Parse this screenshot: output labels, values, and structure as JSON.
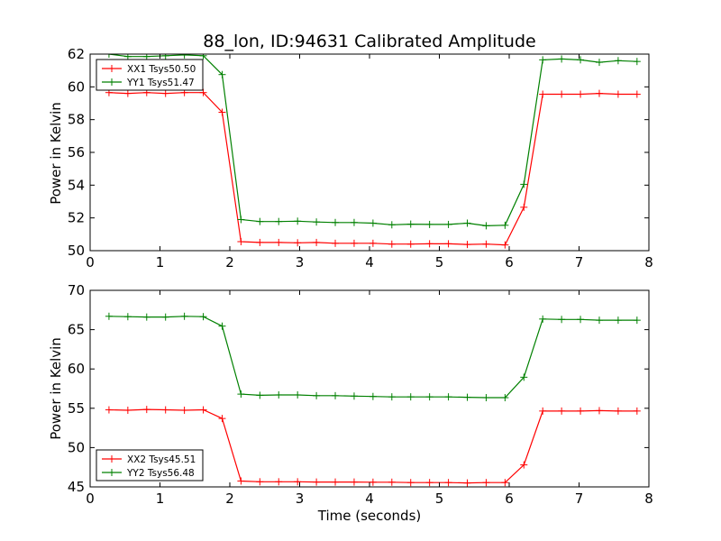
{
  "chart_data": [
    {
      "type": "line",
      "title": "88_lon, ID:94631 Calibrated Amplitude",
      "xlabel": "",
      "ylabel": "Power in Kelvin",
      "xlim": [
        0,
        8
      ],
      "ylim": [
        50,
        62
      ],
      "xticks": [
        0,
        1,
        2,
        3,
        4,
        5,
        6,
        7,
        8
      ],
      "yticks": [
        50,
        52,
        54,
        56,
        58,
        60,
        62
      ],
      "grid": false,
      "legend_position": "upper-left",
      "x": [
        0.27,
        0.54,
        0.81,
        1.08,
        1.35,
        1.62,
        1.89,
        2.16,
        2.43,
        2.7,
        2.97,
        3.24,
        3.51,
        3.78,
        4.05,
        4.32,
        4.59,
        4.86,
        5.13,
        5.4,
        5.67,
        5.94,
        6.21,
        6.48,
        6.75,
        7.02,
        7.29,
        7.56,
        7.83
      ],
      "series": [
        {
          "name": "XX1 Tsys50.50",
          "color": "#ff0000",
          "values": [
            59.65,
            59.6,
            59.65,
            59.6,
            59.65,
            59.65,
            58.45,
            50.55,
            50.5,
            50.5,
            50.48,
            50.5,
            50.45,
            50.45,
            50.45,
            50.4,
            50.4,
            50.42,
            50.42,
            50.38,
            50.4,
            50.35,
            52.65,
            59.55,
            59.55,
            59.55,
            59.6,
            59.55,
            59.55
          ]
        },
        {
          "name": "YY1 Tsys51.47",
          "color": "#008000",
          "values": [
            62.0,
            61.85,
            61.85,
            61.9,
            61.95,
            61.9,
            60.75,
            51.9,
            51.78,
            51.78,
            51.8,
            51.75,
            51.72,
            51.72,
            51.68,
            51.58,
            51.62,
            51.6,
            51.6,
            51.68,
            51.52,
            51.55,
            54.05,
            61.65,
            61.7,
            61.65,
            61.5,
            61.6,
            61.55
          ]
        }
      ]
    },
    {
      "type": "line",
      "title": "",
      "xlabel": "Time (seconds)",
      "ylabel": "Power in Kelvin",
      "xlim": [
        0,
        8
      ],
      "ylim": [
        45,
        70
      ],
      "xticks": [
        0,
        1,
        2,
        3,
        4,
        5,
        6,
        7,
        8
      ],
      "yticks": [
        45,
        50,
        55,
        60,
        65,
        70
      ],
      "grid": false,
      "legend_position": "lower-left",
      "x": [
        0.27,
        0.54,
        0.81,
        1.08,
        1.35,
        1.62,
        1.89,
        2.16,
        2.43,
        2.7,
        2.97,
        3.24,
        3.51,
        3.78,
        4.05,
        4.32,
        4.59,
        4.86,
        5.13,
        5.4,
        5.67,
        5.94,
        6.21,
        6.48,
        6.75,
        7.02,
        7.29,
        7.56,
        7.83
      ],
      "series": [
        {
          "name": "XX2 Tsys45.51",
          "color": "#ff0000",
          "values": [
            54.8,
            54.75,
            54.85,
            54.8,
            54.75,
            54.8,
            53.7,
            45.75,
            45.65,
            45.65,
            45.65,
            45.62,
            45.62,
            45.62,
            45.6,
            45.6,
            45.55,
            45.55,
            45.55,
            45.5,
            45.55,
            45.55,
            47.8,
            54.65,
            54.65,
            54.65,
            54.7,
            54.65,
            54.65
          ]
        },
        {
          "name": "YY2 Tsys56.48",
          "color": "#008000",
          "values": [
            66.7,
            66.65,
            66.6,
            66.6,
            66.7,
            66.65,
            65.45,
            56.8,
            56.65,
            56.7,
            56.7,
            56.6,
            56.6,
            56.55,
            56.5,
            56.45,
            56.45,
            56.45,
            56.45,
            56.4,
            56.35,
            56.35,
            58.95,
            66.35,
            66.3,
            66.3,
            66.2,
            66.2,
            66.2
          ]
        }
      ]
    }
  ]
}
